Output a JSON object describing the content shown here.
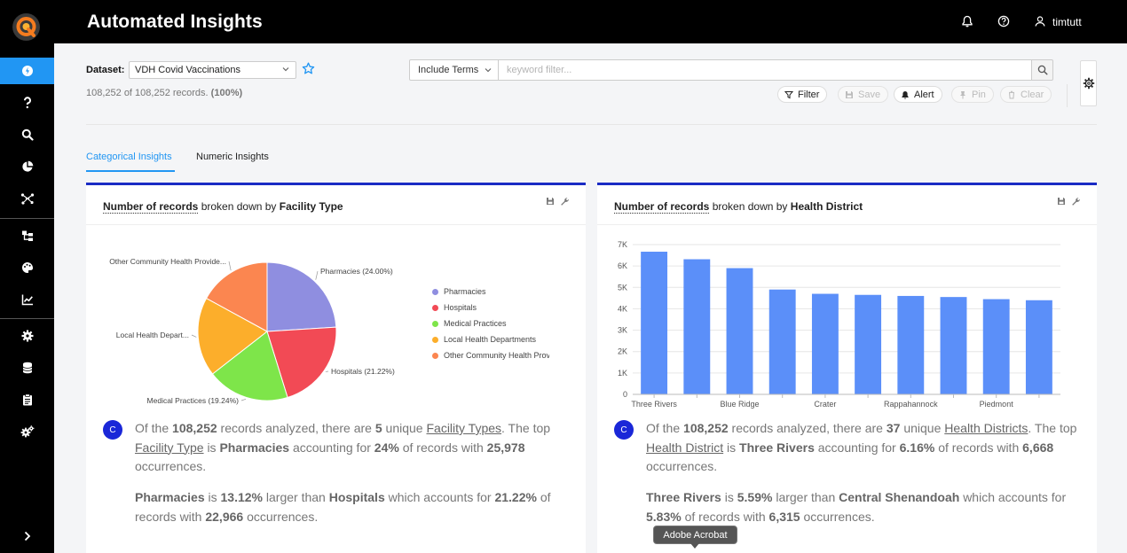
{
  "app": {
    "title": "Automated Insights"
  },
  "user": {
    "name": "timtutt"
  },
  "dataset": {
    "label": "Dataset:",
    "selected": "VDH Covid Vaccinations",
    "records_count": "108,252 of 108,252 records.",
    "records_pct": "(100%)"
  },
  "filter": {
    "terms_mode": "Include Terms",
    "placeholder": "keyword filter..."
  },
  "actions": {
    "filter": "Filter",
    "save": "Save",
    "alert": "Alert",
    "pin": "Pin",
    "clear": "Clear"
  },
  "tabs": [
    {
      "label": "Categorical Insights"
    },
    {
      "label": "Numeric Insights"
    }
  ],
  "cards": [
    {
      "title_metric": "Number of records",
      "title_mid": "broken down by",
      "title_dim": "Facility Type",
      "insight1": {
        "p1": "Of the",
        "n1": "108,252",
        "p2": "records analyzed, there are",
        "n2": "5",
        "p3": "unique",
        "u1": "Facility Types",
        "p4": ". The top",
        "u2": "Facility Type",
        "p5": "is",
        "n3": "Pharmacies",
        "p6": "accounting for",
        "n4": "24%",
        "p7": "of records with",
        "n5": "25,978",
        "p8": "occurrences."
      },
      "insight2": {
        "n1": "Pharmacies",
        "p1": "is",
        "n2": "13.12%",
        "p2": "larger than",
        "n3": "Hospitals",
        "p3": "which accounts for",
        "n4": "21.22%",
        "p4": "of records with",
        "n5": "22,966",
        "p5": "occurrences."
      }
    },
    {
      "title_metric": "Number of records",
      "title_mid": "broken down by",
      "title_dim": "Health District",
      "insight1": {
        "p1": "Of the",
        "n1": "108,252",
        "p2": "records analyzed, there are",
        "n2": "37",
        "p3": "unique",
        "u1": "Health Districts",
        "p4": ". The",
        "p4b": "top",
        "u2": "Health District",
        "p5": "is",
        "n3": "Three Rivers",
        "p6": "accounting for",
        "n4": "6.16%",
        "p7": "of records with",
        "n5": "6,668",
        "p8": "occurrences."
      },
      "insight2": {
        "n1": "Three Rivers",
        "p1": "is",
        "n2": "5.59%",
        "p2": "larger than",
        "n3": "Central Shenandoah",
        "p3": "which accounts for",
        "n4": "5.83%",
        "p4": "of records with",
        "n5": "6,315",
        "p5": "occurrences."
      }
    }
  ],
  "insight_badge": "C",
  "tooltip": "Adobe Acrobat",
  "colors": {
    "accent": "#2196f3",
    "card_border": "#1a2bc4",
    "bar": "#5b8ff9"
  },
  "chart_data": [
    {
      "type": "pie",
      "title": "Number of records broken down by Facility Type",
      "categories": [
        "Pharmacies",
        "Hospitals",
        "Medical Practices",
        "Local Health Departments",
        "Other Community Health Providers"
      ],
      "values": [
        24.0,
        21.22,
        19.24,
        18.5,
        17.04
      ],
      "slice_labels": [
        "Pharmacies (24.00%)",
        "Hospitals (21.22%)",
        "Medical Practices (19.24%)",
        "Local Health Depart...",
        "Other Community Health Provide..."
      ],
      "legend": [
        "Pharmacies",
        "Hospitals",
        "Medical Practices",
        "Local Health Departments",
        "Other Community Health Prov"
      ],
      "colors": [
        "#8f8ee0",
        "#f24a55",
        "#7ee54a",
        "#fcae2b",
        "#fb8650"
      ]
    },
    {
      "type": "bar",
      "title": "Number of records broken down by Health District",
      "categories": [
        "Three Rivers",
        "",
        "Blue Ridge",
        "",
        "Crater",
        "",
        "Rappahannock",
        "",
        "Piedmont",
        ""
      ],
      "values": [
        6668,
        6315,
        5900,
        4900,
        4700,
        4650,
        4600,
        4550,
        4450,
        4400
      ],
      "ylim": [
        0,
        7000
      ],
      "yticks": [
        "0",
        "1K",
        "2K",
        "3K",
        "4K",
        "5K",
        "6K",
        "7K"
      ],
      "grid": true
    }
  ]
}
